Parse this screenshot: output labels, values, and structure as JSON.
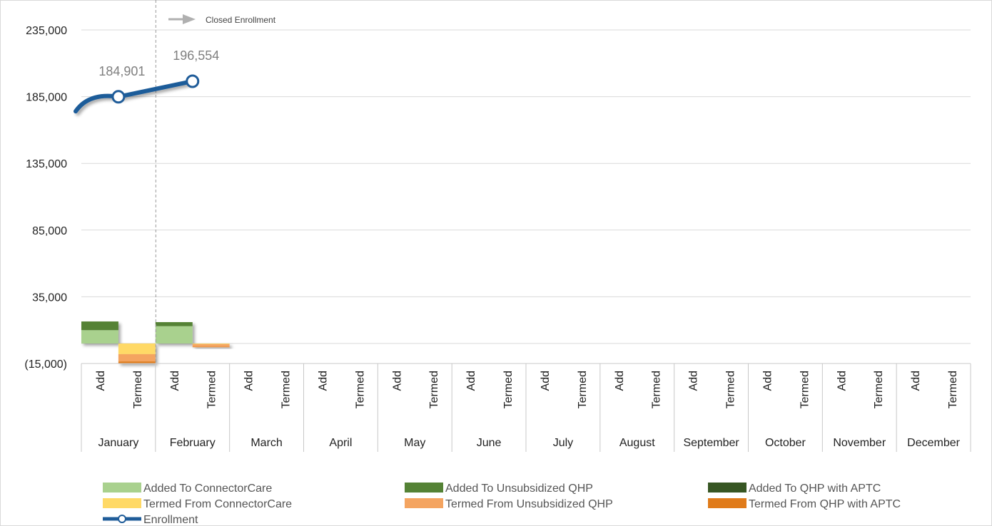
{
  "chart_data": {
    "type": "bar",
    "y_axis": {
      "ylim": [
        -15000,
        235000
      ],
      "ticks": [
        235000,
        185000,
        135000,
        85000,
        35000,
        -15000
      ],
      "tick_labels": [
        "235,000",
        "185,000",
        "135,000",
        "85,000",
        "35,000",
        "(15,000)"
      ],
      "gridlines": true
    },
    "months": [
      "January",
      "February",
      "March",
      "April",
      "May",
      "June",
      "July",
      "August",
      "September",
      "October",
      "November",
      "December"
    ],
    "sub_categories": [
      "Add",
      "Termed"
    ],
    "series": [
      {
        "name": "Added To ConnectorCare",
        "group": "Add",
        "color": "#a9d18e",
        "values": [
          10000,
          13000,
          null,
          null,
          null,
          null,
          null,
          null,
          null,
          null,
          null,
          null
        ]
      },
      {
        "name": "Added To Unsubsidized QHP",
        "group": "Add",
        "color": "#548235",
        "values": [
          6500,
          3000,
          null,
          null,
          null,
          null,
          null,
          null,
          null,
          null,
          null,
          null
        ]
      },
      {
        "name": "Added To QHP with APTC",
        "group": "Add",
        "color": "#375623",
        "values": [
          0,
          0,
          null,
          null,
          null,
          null,
          null,
          null,
          null,
          null,
          null,
          null
        ]
      },
      {
        "name": "Termed From ConnectorCare",
        "group": "Termed",
        "color": "#ffd966",
        "values": [
          -8000,
          -500,
          null,
          null,
          null,
          null,
          null,
          null,
          null,
          null,
          null,
          null
        ]
      },
      {
        "name": "Termed From Unsubsidized QHP",
        "group": "Termed",
        "color": "#f4a460",
        "values": [
          -5500,
          -2000,
          null,
          null,
          null,
          null,
          null,
          null,
          null,
          null,
          null,
          null
        ]
      },
      {
        "name": "Termed From QHP with APTC",
        "group": "Termed",
        "color": "#e07b1a",
        "values": [
          -1500,
          -300,
          null,
          null,
          null,
          null,
          null,
          null,
          null,
          null,
          null,
          null
        ]
      }
    ],
    "enrollment": {
      "name": "Enrollment",
      "color": "#1f5c99",
      "start_value": 174000,
      "values": [
        184901,
        196554
      ],
      "labels": [
        "184,901",
        "196,554"
      ]
    },
    "annotation": {
      "text": "Closed Enrollment"
    },
    "legend": {
      "placement": "bottom"
    }
  }
}
